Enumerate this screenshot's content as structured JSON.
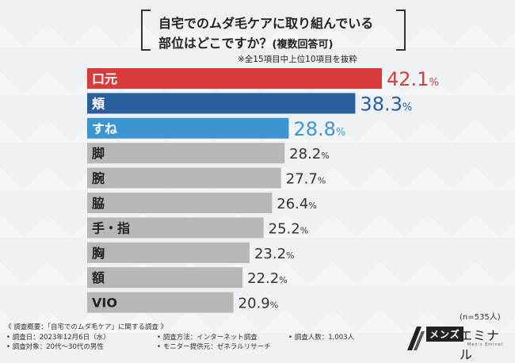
{
  "title": {
    "line1": "自宅でのムダ毛ケアに取り組んでいる",
    "line2": "部位はどこですか？",
    "line2_small": "(複数回答可)"
  },
  "note": "※全15項目中上位10項目を抜粋",
  "sample": "(n=535人)",
  "colors": {
    "top1": "#d93a3a",
    "top2": "#2a5f9e",
    "top3": "#3a95d2",
    "other": "#b7b7b7",
    "label_on_color": "#ffffff",
    "label_on_gray": "#222222"
  },
  "chart_data": {
    "type": "bar",
    "orientation": "horizontal",
    "categories": [
      "口元",
      "頬",
      "すね",
      "脚",
      "腕",
      "脇",
      "手・指",
      "胸",
      "額",
      "VIO"
    ],
    "values": [
      42.1,
      38.3,
      28.8,
      28.2,
      27.7,
      26.4,
      25.2,
      23.2,
      22.2,
      20.9
    ],
    "value_labels": [
      {
        "int": "42.1",
        "unit": "%"
      },
      {
        "int": "38.3",
        "unit": "%"
      },
      {
        "int": "28.8",
        "unit": "%"
      },
      {
        "int": "28.2",
        "unit": "%"
      },
      {
        "int": "27.7",
        "unit": "%"
      },
      {
        "int": "26.4",
        "unit": "%"
      },
      {
        "int": "25.2",
        "unit": "%"
      },
      {
        "int": "23.2",
        "unit": "%"
      },
      {
        "int": "22.2",
        "unit": "%"
      },
      {
        "int": "20.9",
        "unit": "%"
      }
    ],
    "unit": "%",
    "xlim": [
      0,
      42.1
    ]
  },
  "footer": {
    "overview": "《 調査概要：「自宅でのムダ毛ケア」に関する調査 》",
    "date": "• 調査日：2023年12月6日（水）",
    "method": "• 調査方法：インターネット調査",
    "count": "• 調査人数：1,003人",
    "target": "• 調査対象：20代〜30代の男性",
    "provider": "• モニター提供元：ゼネラルリサーチ"
  },
  "logo": {
    "box": "メンズ",
    "main": "エミナル",
    "sub": "Men's Eminal"
  }
}
